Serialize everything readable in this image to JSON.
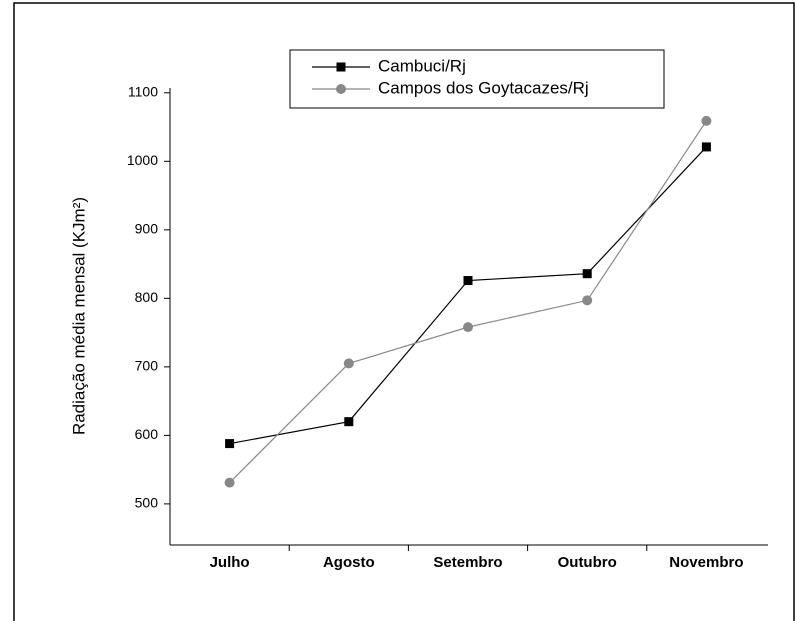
{
  "chart_data": {
    "type": "line",
    "ylabel": "Radiação média mensal (KJm²)",
    "categories": [
      "Julho",
      "Agosto",
      "Setembro",
      "Outubro",
      "Novembro"
    ],
    "series": [
      {
        "name": "Cambuci/Rj",
        "color": "#000000",
        "marker": "square",
        "values": [
          588,
          620,
          826,
          836,
          1021
        ]
      },
      {
        "name": "Campos dos Goytacazes/Rj",
        "color": "#888888",
        "marker": "circle",
        "values": [
          531,
          705,
          758,
          797,
          1059
        ]
      }
    ],
    "ylim": [
      440,
      1107
    ],
    "yticks": [
      500,
      600,
      700,
      800,
      900,
      1000,
      1100
    ],
    "grid": false
  }
}
